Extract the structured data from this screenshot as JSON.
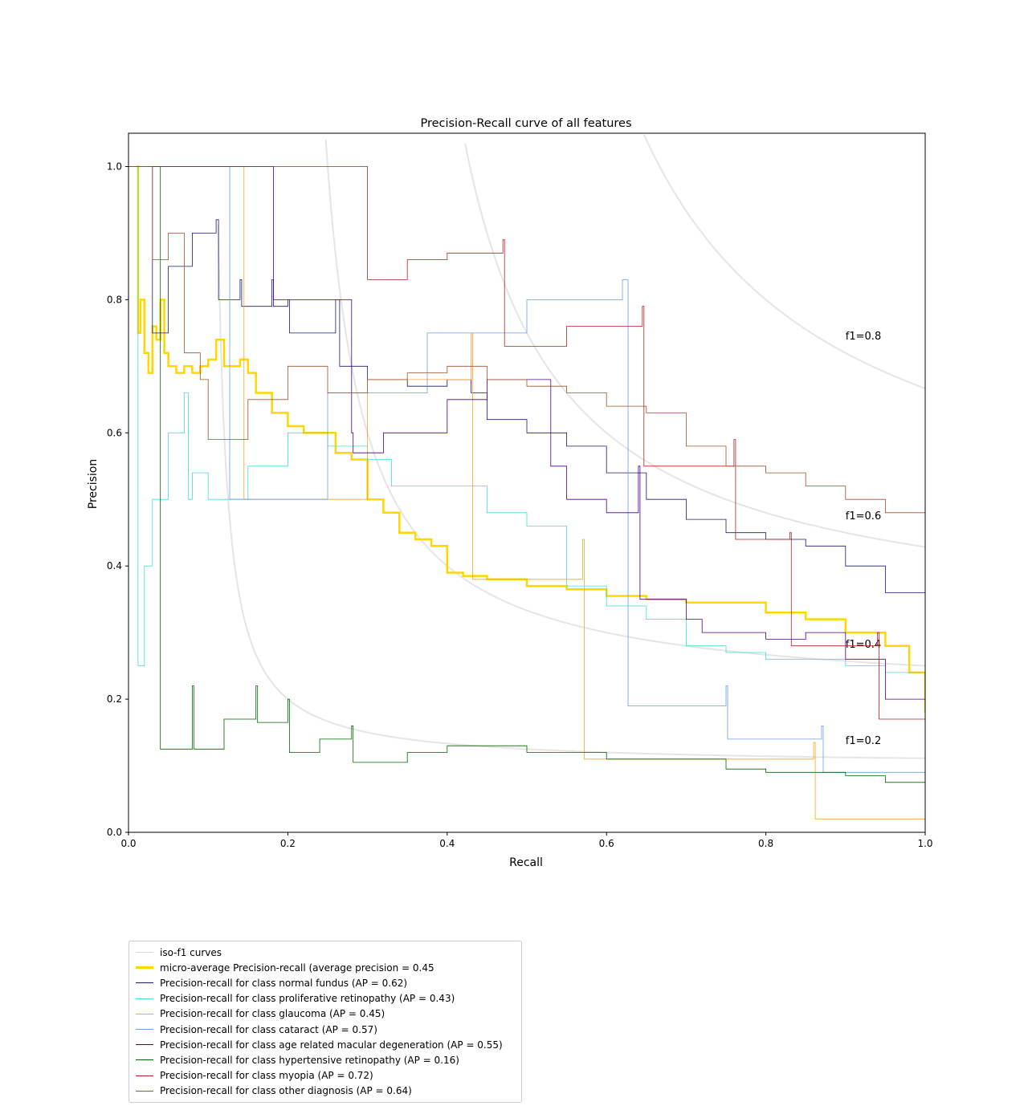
{
  "chart_data": {
    "type": "line",
    "title": "Precision-Recall curve of all features",
    "xlabel": "Recall",
    "ylabel": "Precision",
    "xlim": [
      0.0,
      1.0
    ],
    "ylim": [
      0.0,
      1.05
    ],
    "xticks": [
      "0.0",
      "0.2",
      "0.4",
      "0.6",
      "0.8",
      "1.0"
    ],
    "yticks": [
      "0.0",
      "0.2",
      "0.4",
      "0.6",
      "0.8",
      "1.0"
    ],
    "grid": false,
    "legend_position": "below-left",
    "iso_f1": {
      "legend": "iso-f1 curves",
      "color": "#e5e5e5",
      "values": [
        0.2,
        0.4,
        0.6,
        0.8
      ],
      "labels": [
        "f1=0.2",
        "f1=0.4",
        "f1=0.6",
        "f1=0.8"
      ]
    },
    "series": [
      {
        "name": "micro-average Precision-recall (average precision = 0.45",
        "color": "#ffd700",
        "x": [
          0.01,
          0.012,
          0.015,
          0.02,
          0.025,
          0.03,
          0.035,
          0.04,
          0.045,
          0.05,
          0.06,
          0.07,
          0.08,
          0.09,
          0.1,
          0.11,
          0.12,
          0.13,
          0.14,
          0.15,
          0.16,
          0.18,
          0.2,
          0.22,
          0.24,
          0.26,
          0.28,
          0.3,
          0.32,
          0.34,
          0.36,
          0.38,
          0.4,
          0.42,
          0.45,
          0.5,
          0.55,
          0.6,
          0.65,
          0.7,
          0.75,
          0.8,
          0.85,
          0.9,
          0.95,
          0.98,
          1.0
        ],
        "y": [
          1.0,
          0.75,
          0.8,
          0.72,
          0.69,
          0.76,
          0.74,
          0.8,
          0.72,
          0.7,
          0.69,
          0.7,
          0.69,
          0.7,
          0.71,
          0.74,
          0.7,
          0.7,
          0.71,
          0.69,
          0.66,
          0.63,
          0.61,
          0.6,
          0.6,
          0.57,
          0.56,
          0.5,
          0.48,
          0.45,
          0.44,
          0.43,
          0.39,
          0.385,
          0.38,
          0.37,
          0.365,
          0.355,
          0.35,
          0.345,
          0.345,
          0.33,
          0.32,
          0.3,
          0.28,
          0.24,
          0.18
        ]
      },
      {
        "name": "normal fundus",
        "legend": "Precision-recall for class normal fundus (AP = 0.62)",
        "color": "#191970",
        "x": [
          0.0,
          0.02,
          0.028,
          0.03,
          0.05,
          0.08,
          0.11,
          0.113,
          0.14,
          0.142,
          0.18,
          0.182,
          0.2,
          0.202,
          0.26,
          0.265,
          0.3,
          0.35,
          0.4,
          0.43,
          0.45,
          0.5,
          0.55,
          0.6,
          0.65,
          0.7,
          0.75,
          0.8,
          0.85,
          0.9,
          0.95,
          1.0
        ],
        "y": [
          1.0,
          1.0,
          1.0,
          0.75,
          0.85,
          0.9,
          0.92,
          0.8,
          0.83,
          0.79,
          0.83,
          0.79,
          0.8,
          0.75,
          0.8,
          0.7,
          0.68,
          0.67,
          0.68,
          0.66,
          0.62,
          0.6,
          0.58,
          0.54,
          0.5,
          0.47,
          0.45,
          0.44,
          0.43,
          0.4,
          0.36,
          0.36
        ]
      },
      {
        "name": "proliferative retinopathy",
        "legend": "Precision-recall for class proliferative retinopathy (AP = 0.43)",
        "color": "#40e0d0",
        "x": [
          0.01,
          0.012,
          0.02,
          0.03,
          0.05,
          0.07,
          0.075,
          0.08,
          0.1,
          0.15,
          0.2,
          0.25,
          0.3,
          0.33,
          0.4,
          0.45,
          0.5,
          0.55,
          0.6,
          0.65,
          0.7,
          0.75,
          0.8,
          0.85,
          0.9,
          0.95,
          1.0
        ],
        "y": [
          1.0,
          0.25,
          0.4,
          0.5,
          0.6,
          0.66,
          0.5,
          0.54,
          0.5,
          0.55,
          0.6,
          0.58,
          0.56,
          0.52,
          0.52,
          0.48,
          0.46,
          0.37,
          0.34,
          0.32,
          0.28,
          0.27,
          0.26,
          0.26,
          0.25,
          0.24,
          0.22
        ]
      },
      {
        "name": "glaucoma",
        "legend": "Precision-recall for class glaucoma (AP = 0.45)",
        "color": "#f4a430",
        "x": [
          0.0,
          0.14,
          0.143,
          0.145,
          0.3,
          0.43,
          0.432,
          0.57,
          0.572,
          0.86,
          0.862,
          1.0
        ],
        "y": [
          1.0,
          1.0,
          1.0,
          0.5,
          0.68,
          0.75,
          0.38,
          0.44,
          0.11,
          0.135,
          0.02,
          0.024
        ]
      },
      {
        "name": "cataract",
        "legend": "Precision-recall for class cataract (AP = 0.57)",
        "color": "#6ca0dc",
        "x": [
          0.0,
          0.12,
          0.125,
          0.127,
          0.25,
          0.375,
          0.5,
          0.62,
          0.625,
          0.627,
          0.75,
          0.752,
          0.87,
          0.872,
          1.0
        ],
        "y": [
          1.0,
          1.0,
          1.0,
          0.5,
          0.66,
          0.75,
          0.8,
          0.83,
          0.83,
          0.19,
          0.22,
          0.14,
          0.16,
          0.09,
          0.1
        ]
      },
      {
        "name": "age related macular degeneration",
        "legend": "Precision-recall for class age related macular degeneration (AP = 0.55)",
        "color": "#4b0082",
        "x": [
          0.0,
          0.025,
          0.028,
          0.18,
          0.182,
          0.28,
          0.282,
          0.32,
          0.4,
          0.45,
          0.53,
          0.55,
          0.6,
          0.64,
          0.642,
          0.7,
          0.72,
          0.8,
          0.85,
          0.9,
          0.95,
          1.0
        ],
        "y": [
          1.0,
          1.0,
          1.0,
          1.0,
          0.8,
          0.6,
          0.57,
          0.6,
          0.65,
          0.68,
          0.55,
          0.5,
          0.48,
          0.55,
          0.35,
          0.32,
          0.3,
          0.29,
          0.3,
          0.26,
          0.2,
          0.08
        ]
      },
      {
        "name": "hypertensive retinopathy",
        "legend": "Precision-recall for class hypertensive retinopathy (AP = 0.16)",
        "color": "#006400",
        "x": [
          0.0,
          0.038,
          0.04,
          0.08,
          0.082,
          0.12,
          0.16,
          0.162,
          0.2,
          0.202,
          0.24,
          0.28,
          0.282,
          0.35,
          0.4,
          0.5,
          0.6,
          0.7,
          0.75,
          0.8,
          0.85,
          0.9,
          0.95,
          1.0
        ],
        "y": [
          1.0,
          1.0,
          0.125,
          0.22,
          0.125,
          0.17,
          0.22,
          0.165,
          0.2,
          0.12,
          0.14,
          0.16,
          0.105,
          0.12,
          0.13,
          0.12,
          0.11,
          0.11,
          0.095,
          0.09,
          0.09,
          0.085,
          0.075,
          0.07
        ]
      },
      {
        "name": "myopia",
        "legend": "Precision-recall for class myopia (AP = 0.72)",
        "color": "#b22222",
        "x": [
          0.0,
          0.29,
          0.295,
          0.3,
          0.35,
          0.4,
          0.47,
          0.472,
          0.55,
          0.645,
          0.647,
          0.76,
          0.762,
          0.83,
          0.832,
          0.94,
          0.942,
          1.0
        ],
        "y": [
          1.0,
          1.0,
          1.0,
          0.83,
          0.86,
          0.87,
          0.89,
          0.73,
          0.76,
          0.79,
          0.55,
          0.59,
          0.44,
          0.45,
          0.28,
          0.3,
          0.17,
          0.17
        ]
      },
      {
        "name": "other diagnosis",
        "legend": "Precision-recall for class other diagnosis (AP = 0.64)",
        "color": "#a0522d",
        "x": [
          0.0,
          0.025,
          0.03,
          0.05,
          0.07,
          0.09,
          0.1,
          0.15,
          0.2,
          0.25,
          0.3,
          0.35,
          0.4,
          0.45,
          0.5,
          0.55,
          0.6,
          0.65,
          0.7,
          0.75,
          0.8,
          0.85,
          0.9,
          0.95,
          1.0
        ],
        "y": [
          1.0,
          1.0,
          0.86,
          0.9,
          0.72,
          0.68,
          0.59,
          0.65,
          0.7,
          0.66,
          0.68,
          0.69,
          0.7,
          0.68,
          0.67,
          0.66,
          0.64,
          0.63,
          0.58,
          0.55,
          0.54,
          0.52,
          0.5,
          0.48,
          0.46
        ]
      }
    ]
  }
}
